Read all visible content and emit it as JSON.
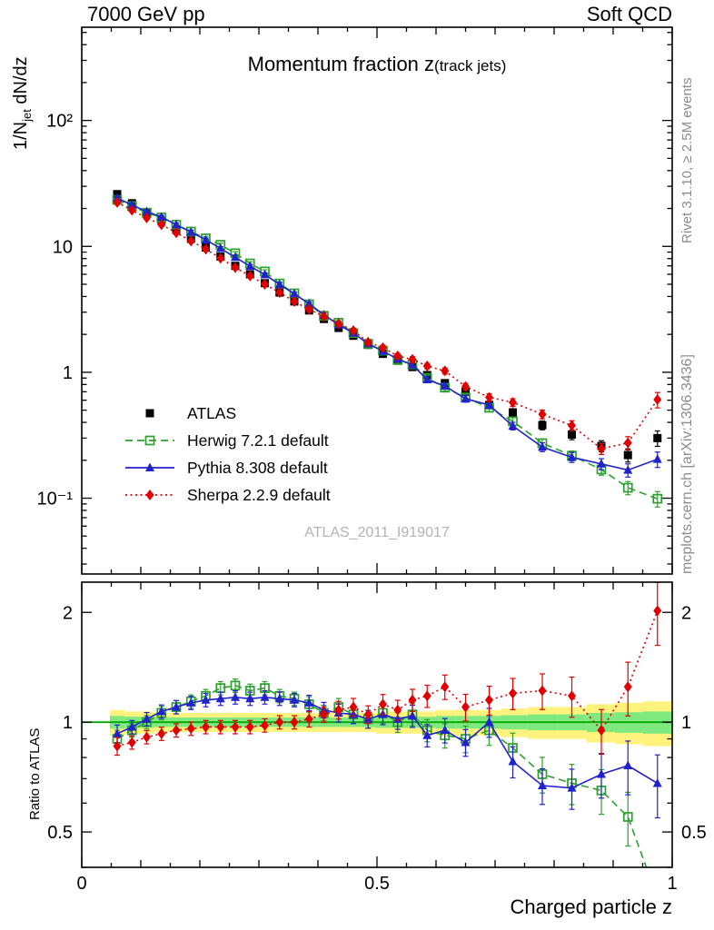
{
  "header": {
    "left": "7000 GeV pp",
    "right": "Soft QCD"
  },
  "side_notes": {
    "top": "Rivet 3.1.10, ≥ 2.5M events",
    "bottom": "mcplots.cern.ch [arXiv:1306.3436]"
  },
  "watermark": "ATLAS_2011_I919017",
  "chart_data": {
    "type": "scatter-line with ratio panel",
    "title": {
      "main": "Momentum fraction z",
      "paren": "(track jets)"
    },
    "xlabel": "Charged particle z",
    "ylabel": {
      "pre": "1/N",
      "sub": "jet",
      "post": " dN/dz"
    },
    "ratio_ylabel": "Ratio to ATLAS",
    "xlim": [
      0,
      1
    ],
    "ylim_main": [
      0.025,
      550
    ],
    "ylim_ratio": [
      0.4,
      2.42
    ],
    "yticks_main": [
      {
        "v": 100,
        "label": "10²"
      },
      {
        "v": 10,
        "label": "10"
      },
      {
        "v": 1,
        "label": "1"
      },
      {
        "v": 0.1,
        "label": "10⁻¹"
      }
    ],
    "yticks_ratio": [
      {
        "v": 2,
        "label": "2"
      },
      {
        "v": 1,
        "label": "1"
      },
      {
        "v": 0.5,
        "label": "0.5"
      }
    ],
    "xticks": [
      {
        "v": 0,
        "label": "0"
      },
      {
        "v": 0.5,
        "label": "0.5"
      },
      {
        "v": 1,
        "label": "1"
      }
    ],
    "x": [
      0.06,
      0.085,
      0.11,
      0.135,
      0.16,
      0.185,
      0.21,
      0.235,
      0.26,
      0.285,
      0.31,
      0.335,
      0.36,
      0.385,
      0.41,
      0.435,
      0.46,
      0.485,
      0.51,
      0.535,
      0.56,
      0.585,
      0.615,
      0.65,
      0.69,
      0.73,
      0.78,
      0.83,
      0.88,
      0.925,
      0.975
    ],
    "band_yellow": [
      0.08,
      0.07,
      0.07,
      0.06,
      0.06,
      0.06,
      0.06,
      0.06,
      0.06,
      0.06,
      0.06,
      0.06,
      0.06,
      0.06,
      0.06,
      0.06,
      0.06,
      0.06,
      0.07,
      0.07,
      0.07,
      0.07,
      0.08,
      0.08,
      0.08,
      0.09,
      0.1,
      0.1,
      0.12,
      0.13,
      0.14
    ],
    "band_green_scale": 0.5,
    "band_colors": {
      "yellow": "#fff27d",
      "green": "#7fe87f",
      "center_line": "#00aa00"
    },
    "series": [
      {
        "name": "ATLAS",
        "marker": "square",
        "color": "#000000",
        "line": "none",
        "values": [
          26,
          22,
          18.5,
          16,
          13.5,
          11.5,
          9.8,
          8.3,
          7.0,
          6.0,
          5.1,
          4.3,
          3.65,
          3.1,
          2.65,
          2.25,
          1.95,
          1.65,
          1.4,
          1.25,
          1.1,
          0.95,
          0.82,
          0.7,
          0.55,
          0.48,
          0.38,
          0.32,
          0.26,
          0.22,
          0.3
        ],
        "err_frac": [
          0.04,
          0.03,
          0.03,
          0.03,
          0.03,
          0.03,
          0.03,
          0.03,
          0.03,
          0.03,
          0.03,
          0.03,
          0.03,
          0.035,
          0.035,
          0.04,
          0.04,
          0.04,
          0.045,
          0.045,
          0.05,
          0.05,
          0.055,
          0.06,
          0.065,
          0.07,
          0.08,
          0.09,
          0.1,
          0.12,
          0.14
        ]
      },
      {
        "name": "Herwig 7.2.1 default",
        "marker": "open-square",
        "color": "#2ca02c",
        "line": "dashed",
        "ratio_to_atlas": [
          0.9,
          0.95,
          1.0,
          1.06,
          1.1,
          1.14,
          1.18,
          1.24,
          1.26,
          1.22,
          1.24,
          1.18,
          1.16,
          1.12,
          1.06,
          1.1,
          1.05,
          1.02,
          1.06,
          1.0,
          1.05,
          0.95,
          0.92,
          0.9,
          0.95,
          0.85,
          0.72,
          0.68,
          0.65,
          0.55,
          0.33
        ],
        "err_frac": [
          0.04,
          0.03,
          0.03,
          0.03,
          0.03,
          0.03,
          0.03,
          0.03,
          0.03,
          0.03,
          0.03,
          0.03,
          0.03,
          0.035,
          0.035,
          0.04,
          0.04,
          0.04,
          0.045,
          0.045,
          0.05,
          0.05,
          0.055,
          0.06,
          0.065,
          0.07,
          0.08,
          0.09,
          0.1,
          0.12,
          0.14
        ]
      },
      {
        "name": "Pythia 8.308 default",
        "marker": "triangle",
        "color": "#2222cc",
        "line": "solid",
        "ratio_to_atlas": [
          0.93,
          0.97,
          1.02,
          1.07,
          1.1,
          1.13,
          1.15,
          1.16,
          1.17,
          1.16,
          1.17,
          1.16,
          1.15,
          1.13,
          1.08,
          1.06,
          1.05,
          1.02,
          1.05,
          1.02,
          1.04,
          0.92,
          0.95,
          0.88,
          1.0,
          0.78,
          0.67,
          0.66,
          0.72,
          0.76,
          0.68
        ],
        "err_frac": [
          0.04,
          0.03,
          0.03,
          0.03,
          0.03,
          0.03,
          0.03,
          0.03,
          0.03,
          0.03,
          0.03,
          0.03,
          0.03,
          0.035,
          0.035,
          0.04,
          0.04,
          0.04,
          0.045,
          0.045,
          0.05,
          0.05,
          0.055,
          0.06,
          0.065,
          0.07,
          0.08,
          0.09,
          0.1,
          0.12,
          0.14
        ],
        "err_frac_note": ""
      },
      {
        "name": "Sherpa 2.2.9 default",
        "marker": "diamond",
        "color": "#e00000",
        "line": "dotted",
        "ratio_to_atlas": [
          0.86,
          0.88,
          0.91,
          0.93,
          0.95,
          0.96,
          0.97,
          0.97,
          0.97,
          0.97,
          0.98,
          1.0,
          1.0,
          1.02,
          1.05,
          1.08,
          1.1,
          1.05,
          1.12,
          1.08,
          1.15,
          1.18,
          1.25,
          1.1,
          1.15,
          1.2,
          1.22,
          1.18,
          0.95,
          1.25,
          2.02
        ],
        "err_frac": [
          0.04,
          0.03,
          0.03,
          0.03,
          0.03,
          0.03,
          0.03,
          0.03,
          0.03,
          0.03,
          0.03,
          0.03,
          0.03,
          0.035,
          0.035,
          0.04,
          0.04,
          0.04,
          0.045,
          0.045,
          0.05,
          0.05,
          0.055,
          0.06,
          0.065,
          0.07,
          0.08,
          0.09,
          0.1,
          0.12,
          0.14
        ]
      }
    ]
  }
}
